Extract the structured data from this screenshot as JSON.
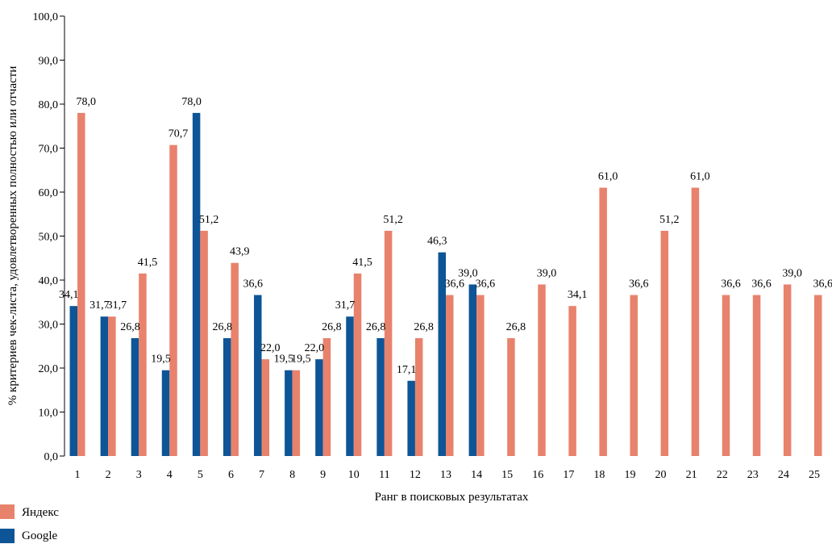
{
  "chart_data": {
    "type": "bar",
    "title": "",
    "xlabel": "Ранг в поисковых результатах",
    "ylabel": "% критериев чек-листа, удовлетворенных полностью или отчасти",
    "ylim": [
      0,
      100
    ],
    "ytick_values": [
      0,
      10,
      20,
      30,
      40,
      50,
      60,
      70,
      80,
      90,
      100
    ],
    "ytick_labels": [
      "0,0",
      "10,0",
      "20,0",
      "30,0",
      "40,0",
      "50,0",
      "60,0",
      "70,0",
      "80,0",
      "90,0",
      "100,0"
    ],
    "categories": [
      "1",
      "2",
      "3",
      "4",
      "5",
      "6",
      "7",
      "8",
      "9",
      "10",
      "11",
      "12",
      "13",
      "14",
      "15",
      "16",
      "17",
      "18",
      "19",
      "20",
      "21",
      "22",
      "23",
      "24",
      "25"
    ],
    "legend_position": "bottom-left",
    "grid": false,
    "series": [
      {
        "name": "Google",
        "color": "#0d5596",
        "values": [
          34.1,
          31.7,
          26.8,
          19.5,
          78.0,
          26.8,
          36.6,
          19.5,
          22.0,
          31.7,
          26.8,
          17.1,
          46.3,
          39.0,
          null,
          null,
          null,
          null,
          null,
          null,
          null,
          null,
          null,
          null,
          null
        ],
        "labels": [
          "34,1",
          "31,7",
          "26,8",
          "19,5",
          "78,0",
          "26,8",
          "36,6",
          "19,5",
          "22,0",
          "31,7",
          "26,8",
          "17,1",
          "46,3",
          "39,0",
          null,
          null,
          null,
          null,
          null,
          null,
          null,
          null,
          null,
          null,
          null
        ]
      },
      {
        "name": "Яндекс",
        "color": "#e8826c",
        "values": [
          78.0,
          31.7,
          41.5,
          70.7,
          51.2,
          43.9,
          22.0,
          19.5,
          26.8,
          41.5,
          51.2,
          26.8,
          36.6,
          36.6,
          26.8,
          39.0,
          34.1,
          61.0,
          36.6,
          51.2,
          61.0,
          36.6,
          36.6,
          39.0,
          36.6
        ],
        "labels": [
          "78,0",
          "31,7",
          "41,5",
          "70,7",
          "51,2",
          "43,9",
          "22,0",
          "19,5",
          "26,8",
          "41,5",
          "51,2",
          "26,8",
          "36,6",
          "36,6",
          "26,8",
          "39,0",
          "34,1",
          "61,0",
          "36,6",
          "51,2",
          "61,0",
          "36,6",
          "36,6",
          "39,0",
          "36,6"
        ]
      }
    ],
    "legend": [
      {
        "label": "Яндекс",
        "color": "#e8826c"
      },
      {
        "label": "Google",
        "color": "#0d5596"
      }
    ]
  }
}
